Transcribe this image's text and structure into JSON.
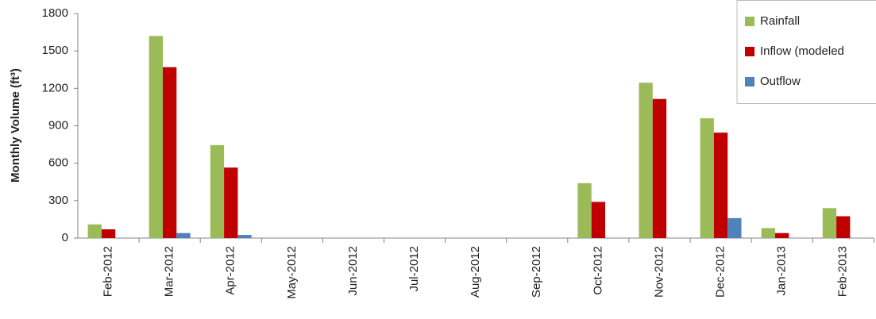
{
  "chart_data": {
    "type": "bar",
    "y_label": "Monthly Volume (ft³)",
    "categories": [
      "Feb-2012",
      "Mar-2012",
      "Apr-2012",
      "May-2012",
      "Jun-2012",
      "Jul-2012",
      "Aug-2012",
      "Sep-2012",
      "Oct-2012",
      "Nov-2012",
      "Dec-2012",
      "Jan-2013",
      "Feb-2013"
    ],
    "series": [
      {
        "name": "Rainfall",
        "color": "#9bbb59",
        "values": [
          110,
          1620,
          745,
          0,
          0,
          0,
          0,
          0,
          440,
          1245,
          960,
          80,
          240
        ]
      },
      {
        "name": "Inflow (modeled",
        "color": "#c00000",
        "values": [
          70,
          1370,
          565,
          0,
          0,
          0,
          0,
          0,
          290,
          1115,
          845,
          40,
          175
        ]
      },
      {
        "name": "Outflow",
        "color": "#4f81bd",
        "values": [
          0,
          40,
          25,
          0,
          0,
          0,
          0,
          0,
          0,
          0,
          160,
          0,
          0
        ]
      }
    ],
    "ylim": [
      0,
      1800
    ],
    "yticks": [
      0,
      300,
      600,
      900,
      1200,
      1500,
      1800
    ],
    "legend": "top-right",
    "grid": false
  }
}
